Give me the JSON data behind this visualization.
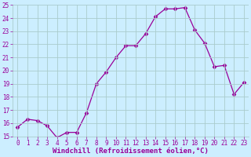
{
  "x": [
    0,
    1,
    2,
    3,
    4,
    5,
    6,
    7,
    8,
    9,
    10,
    11,
    12,
    13,
    14,
    15,
    16,
    17,
    18,
    19,
    20,
    21,
    22,
    23
  ],
  "y": [
    15.7,
    16.3,
    16.2,
    15.8,
    14.9,
    15.3,
    15.3,
    16.8,
    19.0,
    19.9,
    21.0,
    21.9,
    21.9,
    22.8,
    24.1,
    24.7,
    24.7,
    24.8,
    23.1,
    22.1,
    20.3,
    20.4,
    18.2,
    19.1
  ],
  "line_color": "#990099",
  "marker_color": "#990099",
  "bg_color": "#cceeff",
  "grid_color": "#aacccc",
  "xlabel": "Windchill (Refroidissement éolien,°C)",
  "xlim_lo": -0.5,
  "xlim_hi": 23.5,
  "ylim": [
    15,
    25
  ],
  "yticks": [
    15,
    16,
    17,
    18,
    19,
    20,
    21,
    22,
    23,
    24,
    25
  ],
  "xtick_labels": [
    "0",
    "1",
    "2",
    "3",
    "4",
    "5",
    "6",
    "7",
    "8",
    "9",
    "10",
    "11",
    "12",
    "13",
    "14",
    "15",
    "16",
    "17",
    "18",
    "19",
    "20",
    "21",
    "22",
    "23"
  ],
  "tick_color": "#990099",
  "label_color": "#990099",
  "label_fontsize": 6.5,
  "tick_fontsize": 5.5
}
